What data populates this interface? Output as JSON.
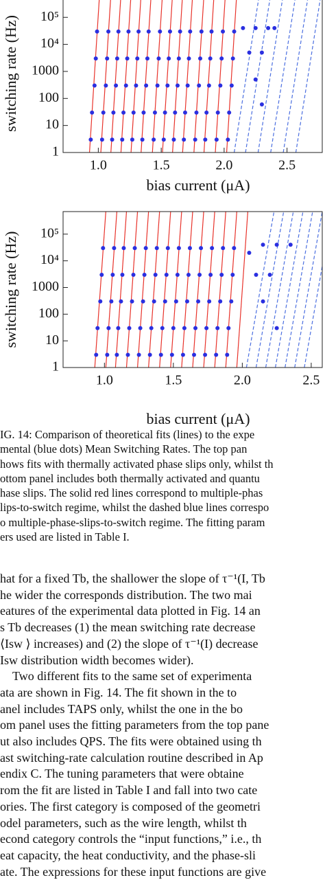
{
  "chart_data": [
    {
      "type": "scatter",
      "xlabel": "bias current (μA)",
      "ylabel": "switching rate (Hz)",
      "log_y": true,
      "xlim": [
        0.72,
        2.78
      ],
      "ylim": [
        1,
        700000
      ],
      "xticks": [
        {
          "value": 1,
          "label": "1.0"
        },
        1.5,
        {
          "value": 2,
          "label": "2.0"
        },
        2.5
      ],
      "yticks": [
        1,
        10,
        100,
        1000,
        {
          "value": 10000,
          "label": "10⁴"
        },
        {
          "value": 100000,
          "label": "10⁵"
        }
      ],
      "series": [
        {
          "type": "line",
          "color": "#e8322a",
          "dash": false,
          "x": [
            0.93,
            1.01,
            null,
            1.02,
            1.1,
            null,
            1.1,
            1.18,
            null,
            1.18,
            1.26,
            null,
            1.26,
            1.34,
            null,
            1.34,
            1.42,
            null,
            1.43,
            1.51,
            null,
            1.51,
            1.59,
            null,
            1.59,
            1.67,
            null,
            1.67,
            1.75,
            null,
            1.76,
            1.84,
            null,
            1.84,
            1.92,
            null,
            1.93,
            2.01,
            null,
            2.02,
            2.1
          ],
          "values": [
            1,
            700000,
            null,
            1,
            700000,
            null,
            1,
            700000,
            null,
            1,
            700000,
            null,
            1,
            700000,
            null,
            1,
            700000,
            null,
            1,
            700000,
            null,
            1,
            700000,
            null,
            1,
            700000,
            null,
            1,
            700000,
            null,
            1,
            700000,
            null,
            1,
            700000,
            null,
            1,
            700000,
            null,
            1,
            700000
          ]
        },
        {
          "type": "line",
          "color": "#4a6ee0",
          "dash": true,
          "x": [
            2.08,
            2.28,
            null,
            2.17,
            2.37,
            null,
            2.27,
            2.47,
            null,
            2.37,
            2.57,
            null,
            2.47,
            2.67,
            null,
            2.57,
            2.77
          ],
          "values": [
            1,
            700000,
            null,
            1,
            700000,
            null,
            1,
            700000,
            null,
            1,
            700000,
            null,
            1,
            700000,
            null,
            1,
            700000
          ]
        },
        {
          "type": "scatter",
          "color": "#2a2fe0",
          "x": [
            0.94,
            0.95,
            0.97,
            0.98,
            0.99,
            1.03,
            1.04,
            1.06,
            1.07,
            1.08,
            1.11,
            1.12,
            1.14,
            1.15,
            1.16,
            1.19,
            1.2,
            1.22,
            1.23,
            1.24,
            1.27,
            1.28,
            1.3,
            1.31,
            1.32,
            1.35,
            1.36,
            1.38,
            1.39,
            1.4,
            1.44,
            1.45,
            1.47,
            1.48,
            1.49,
            1.52,
            1.53,
            1.55,
            1.56,
            1.57,
            1.6,
            1.61,
            1.63,
            1.64,
            1.65,
            1.68,
            1.69,
            1.71,
            1.72,
            1.73,
            1.77,
            1.78,
            1.8,
            1.81,
            1.82,
            1.85,
            1.86,
            1.88,
            1.89,
            1.9,
            1.94,
            1.95,
            1.97,
            1.98,
            1.99,
            2.03,
            2.04,
            2.06,
            2.07,
            2.08,
            2.15,
            2.25,
            2.35,
            2.4,
            2.2,
            2.3,
            2.25,
            2.3
          ],
          "values": [
            3,
            30,
            300,
            3000,
            30000,
            3,
            30,
            300,
            3000,
            30000,
            3,
            30,
            300,
            3000,
            30000,
            3,
            30,
            300,
            3000,
            30000,
            3,
            30,
            300,
            3000,
            30000,
            3,
            30,
            300,
            3000,
            30000,
            3,
            30,
            300,
            3000,
            30000,
            3,
            30,
            300,
            3000,
            30000,
            3,
            30,
            300,
            3000,
            30000,
            3,
            30,
            300,
            3000,
            30000,
            3,
            30,
            300,
            3000,
            30000,
            3,
            30,
            300,
            3000,
            30000,
            3,
            30,
            300,
            3000,
            30000,
            3,
            30,
            300,
            3000,
            30000,
            40000,
            40000,
            40000,
            40000,
            5000,
            5000,
            500,
            60
          ]
        }
      ]
    },
    {
      "type": "scatter",
      "xlabel": "bias current (μA)",
      "ylabel": "switching rate (Hz)",
      "log_y": true,
      "xlim": [
        0.7,
        2.58
      ],
      "ylim": [
        1,
        700000
      ],
      "xticks": [
        {
          "value": 1,
          "label": "1.0"
        },
        1.5,
        {
          "value": 2,
          "label": "2.0"
        },
        2.5
      ],
      "yticks": [
        1,
        10,
        100,
        1000,
        {
          "value": 10000,
          "label": "10⁴"
        },
        {
          "value": 100000,
          "label": "10⁵"
        }
      ],
      "series": [
        {
          "type": "line",
          "color": "#e8322a",
          "dash": false,
          "x": [
            0.93,
            1.01,
            null,
            1.01,
            1.09,
            null,
            1.08,
            1.16,
            null,
            1.16,
            1.24,
            null,
            1.24,
            1.32,
            null,
            1.32,
            1.4,
            null,
            1.4,
            1.48,
            null,
            1.48,
            1.56,
            null,
            1.56,
            1.64,
            null,
            1.64,
            1.72,
            null,
            1.72,
            1.8,
            null,
            1.8,
            1.88,
            null,
            1.88,
            1.96,
            null,
            1.96,
            2.04
          ],
          "values": [
            1,
            700000,
            null,
            1,
            700000,
            null,
            1,
            700000,
            null,
            1,
            700000,
            null,
            1,
            700000,
            null,
            1,
            700000,
            null,
            1,
            700000,
            null,
            1,
            700000,
            null,
            1,
            700000,
            null,
            1,
            700000,
            null,
            1,
            700000,
            null,
            1,
            700000,
            null,
            1,
            700000,
            null,
            1,
            700000
          ]
        },
        {
          "type": "line",
          "color": "#4a6ee0",
          "dash": true,
          "x": [
            2.03,
            2.23,
            null,
            2.1,
            2.3,
            null,
            2.17,
            2.37,
            null,
            2.24,
            2.44,
            null,
            2.31,
            2.51,
            null,
            2.38,
            2.58,
            null,
            2.45,
            2.65
          ],
          "values": [
            1,
            700000,
            null,
            1,
            700000,
            null,
            1,
            700000,
            null,
            1,
            700000,
            null,
            1,
            700000,
            null,
            1,
            700000,
            null,
            1,
            700000
          ]
        },
        {
          "type": "scatter",
          "color": "#2a2fe0",
          "x": [
            0.94,
            0.95,
            0.97,
            0.98,
            0.99,
            1.02,
            1.03,
            1.05,
            1.06,
            1.07,
            1.09,
            1.1,
            1.12,
            1.13,
            1.14,
            1.17,
            1.18,
            1.2,
            1.21,
            1.22,
            1.25,
            1.26,
            1.28,
            1.29,
            1.3,
            1.33,
            1.34,
            1.36,
            1.37,
            1.38,
            1.41,
            1.42,
            1.44,
            1.45,
            1.46,
            1.49,
            1.5,
            1.52,
            1.53,
            1.54,
            1.57,
            1.58,
            1.6,
            1.61,
            1.62,
            1.65,
            1.66,
            1.68,
            1.69,
            1.7,
            1.73,
            1.74,
            1.76,
            1.77,
            1.78,
            1.81,
            1.82,
            1.84,
            1.85,
            1.86,
            1.89,
            1.9,
            1.92,
            1.93,
            1.94,
            2.05,
            2.15,
            2.25,
            2.35,
            2.1,
            2.2,
            2.15,
            2.25
          ],
          "values": [
            3,
            30,
            300,
            3000,
            30000,
            3,
            30,
            300,
            3000,
            30000,
            3,
            30,
            300,
            3000,
            30000,
            3,
            30,
            300,
            3000,
            30000,
            3,
            30,
            300,
            3000,
            30000,
            3,
            30,
            300,
            3000,
            30000,
            3,
            30,
            300,
            3000,
            30000,
            3,
            30,
            300,
            3000,
            30000,
            3,
            30,
            300,
            3000,
            30000,
            3,
            30,
            300,
            3000,
            30000,
            3,
            30,
            300,
            3000,
            30000,
            3,
            30,
            300,
            3000,
            30000,
            3,
            30,
            300,
            3000,
            30000,
            20000,
            40000,
            40000,
            40000,
            3000,
            3000,
            300,
            30
          ]
        }
      ]
    }
  ],
  "caption": {
    "lines": [
      "IG. 14: Comparison of theoretical fits (lines) to the expe",
      "mental (blue dots) Mean Switching Rates.  The top pan",
      "hows fits with thermally activated phase slips only, whilst th",
      "ottom panel includes both thermally activated and quantu",
      "hase slips. The solid red lines correspond to multiple-phas",
      "lips-to-switch regime, whilst the dashed blue lines correspo",
      "o multiple-phase-slips-to-switch regime. The fitting param",
      "ers used are listed in Table I."
    ]
  },
  "body": {
    "lines": [
      "hat for a fixed Tb, the shallower the slope of τ⁻¹(I, Tb",
      "he wider the corresponds distribution.  The two mai",
      "eatures of the experimental data plotted in Fig. 14 an",
      "s Tb decreases (1) the mean switching rate decrease",
      "⟨Isw ⟩ increases) and (2) the slope of τ⁻¹(I) decrease",
      "Isw distribution width becomes wider).",
      "Two different fits to the same set of experimenta",
      "ata are shown in Fig. 14.  The fit shown in the to",
      "anel includes TAPS only, whilst the one in the bo",
      "om panel uses the fitting parameters from the top pane",
      "ut also includes QPS. The fits were obtained using th",
      "ast switching-rate calculation routine described in Ap",
      "endix C.  The tuning parameters that were obtaine",
      "rom the fit are listed in Table I and fall into two cate",
      "ories.  The first category is composed of the geometri",
      "odel parameters, such as the wire length, whilst th",
      "econd category controls the “input functions,” i.e., th",
      "eat capacity, the heat conductivity, and the phase-sli",
      "ate. The expressions for these input functions are give"
    ]
  }
}
